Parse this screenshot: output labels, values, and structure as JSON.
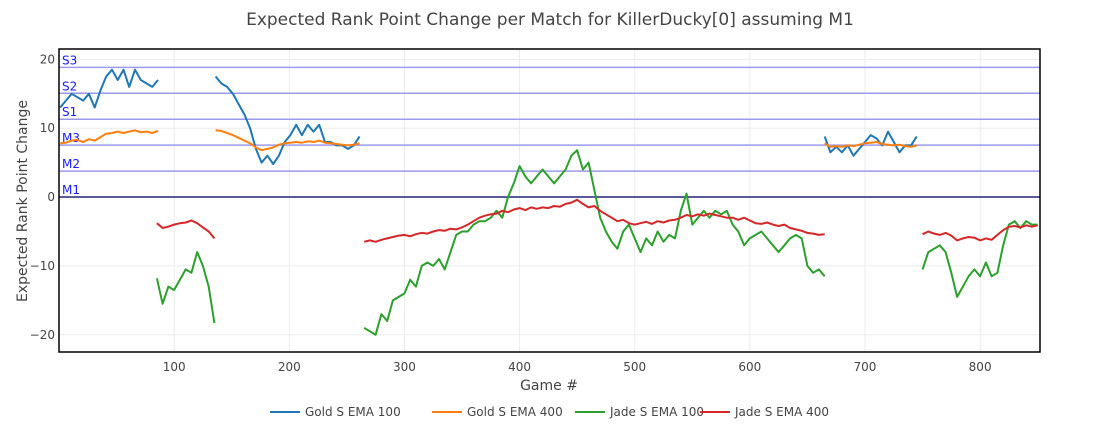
{
  "chart_data": {
    "type": "line",
    "title": "Expected Rank Point Change per Match for KillerDucky[0] assuming M1",
    "xlabel": "Game #",
    "ylabel": "Expected Rank Point Change",
    "xlim": [
      0,
      852
    ],
    "ylim": [
      -22.5,
      21.5
    ],
    "xticks": [
      100,
      200,
      300,
      400,
      500,
      600,
      700,
      800
    ],
    "yticks": [
      -20,
      -10,
      0,
      10,
      20
    ],
    "grid": true,
    "legend_position": "bottom-center",
    "reference_lines": [
      {
        "label": "S3",
        "y": 18.84,
        "color": "#9a9aee"
      },
      {
        "label": "S2",
        "y": 15.07,
        "color": "#9a9aee"
      },
      {
        "label": "S1",
        "y": 11.3,
        "color": "#9a9aee"
      },
      {
        "label": "M3",
        "y": 7.54,
        "color": "#9a9aee"
      },
      {
        "label": "M2",
        "y": 3.77,
        "color": "#9a9aee"
      },
      {
        "label": "M1",
        "y": 0,
        "color": "#5a5a9a"
      }
    ],
    "reference_label_color": "#1a1aff",
    "series": [
      {
        "name": "Gold S EMA 100",
        "color": "#1f77b4",
        "segments": [
          {
            "x0": 1,
            "step": 5,
            "y": [
              13,
              14,
              15,
              14.5,
              14,
              15,
              13,
              15.5,
              17.5,
              18.5,
              17,
              18.5,
              16,
              18.5,
              17,
              16.5,
              16,
              17
            ]
          },
          {
            "x0": 136,
            "step": 5,
            "y": [
              17.5,
              16.5,
              16,
              15,
              13.5,
              12,
              10,
              7,
              5,
              6,
              4.8,
              6,
              8,
              9,
              10.5,
              9,
              10.5,
              9.5,
              10.5,
              8,
              8,
              7.5,
              7.5,
              7,
              7.5,
              8.8
            ]
          },
          {
            "x0": 665,
            "step": 5,
            "y": [
              8.8,
              6.5,
              7.3,
              6.5,
              7.5,
              6,
              7,
              8,
              9,
              8.5,
              7.5,
              9.5,
              8,
              6.5,
              7.5,
              7.5,
              8.8
            ]
          }
        ]
      },
      {
        "name": "Gold S EMA 400",
        "color": "#ff7f0e",
        "segments": [
          {
            "x0": 1,
            "step": 5,
            "y": [
              7.8,
              7.9,
              8.2,
              8.3,
              8.0,
              8.4,
              8.2,
              8.7,
              9.2,
              9.3,
              9.5,
              9.3,
              9.5,
              9.7,
              9.4,
              9.5,
              9.3,
              9.6
            ]
          },
          {
            "x0": 136,
            "step": 5,
            "y": [
              9.7,
              9.6,
              9.3,
              9.0,
              8.6,
              8.2,
              7.8,
              7.2,
              6.8,
              7.0,
              7.2,
              7.6,
              7.8,
              7.9,
              8.0,
              7.9,
              8.1,
              8.0,
              8.2,
              7.9,
              7.8,
              7.7,
              7.6,
              7.5,
              7.6,
              7.8
            ]
          },
          {
            "x0": 665,
            "step": 5,
            "y": [
              7.8,
              7.3,
              7.4,
              7.3,
              7.5,
              7.4,
              7.6,
              7.8,
              7.9,
              8.0,
              7.7,
              7.6,
              7.5,
              7.6,
              7.4,
              7.3,
              7.5
            ]
          }
        ]
      },
      {
        "name": "Jade S EMA 100",
        "color": "#2ca02c",
        "segments": [
          {
            "x0": 85,
            "step": 5,
            "y": [
              -11.8,
              -15.5,
              -13,
              -13.5,
              -12,
              -10.5,
              -11,
              -8,
              -10,
              -13,
              -18.3
            ]
          },
          {
            "x0": 265,
            "step": 5,
            "y": [
              -19,
              -19.5,
              -20,
              -17,
              -18,
              -15,
              -14.5,
              -14,
              -12,
              -13,
              -10,
              -9.5,
              -10,
              -9,
              -10.5,
              -8,
              -5.5,
              -5,
              -5,
              -4,
              -3.5,
              -3.5,
              -3,
              -2,
              -3,
              0,
              2,
              4.5,
              3,
              2,
              3,
              4,
              3,
              2,
              3,
              4,
              6,
              6.8,
              4,
              5,
              1,
              -3,
              -5,
              -6.5,
              -7.5,
              -5,
              -4,
              -6,
              -8,
              -6,
              -7,
              -5,
              -6.5,
              -5.5,
              -6,
              -2,
              0.5,
              -4,
              -3,
              -2,
              -3,
              -2,
              -2.5,
              -2,
              -4,
              -5,
              -7,
              -6,
              -5.5,
              -5,
              -6,
              -7,
              -8,
              -7,
              -6,
              -5.5,
              -6,
              -10,
              -11,
              -10.5,
              -11.5
            ]
          },
          {
            "x0": 750,
            "step": 5,
            "y": [
              -10.5,
              -8,
              -7.5,
              -7,
              -8,
              -11,
              -14.5,
              -13,
              -11.5,
              -10.5,
              -11.5,
              -9.5,
              -11.5,
              -11,
              -7,
              -4,
              -3.5,
              -4.5,
              -3.5,
              -4,
              -4
            ]
          }
        ]
      },
      {
        "name": "Jade S EMA 400",
        "color": "#d62728",
        "segments": [
          {
            "x0": 85,
            "step": 5,
            "y": [
              -3.8,
              -4.5,
              -4.3,
              -4.0,
              -3.8,
              -3.7,
              -3.4,
              -3.8,
              -4.4,
              -5.0,
              -6.0
            ]
          },
          {
            "x0": 265,
            "step": 5,
            "y": [
              -6.5,
              -6.3,
              -6.5,
              -6.2,
              -6.0,
              -5.8,
              -5.6,
              -5.5,
              -5.7,
              -5.4,
              -5.2,
              -5.3,
              -5.0,
              -4.8,
              -4.9,
              -4.6,
              -4.7,
              -4.4,
              -4.0,
              -3.5,
              -3.0,
              -2.7,
              -2.5,
              -2.4,
              -2.0,
              -2.2,
              -1.8,
              -1.6,
              -1.9,
              -1.5,
              -1.7,
              -1.5,
              -1.6,
              -1.3,
              -1.4,
              -1.0,
              -0.8,
              -0.4,
              -1.0,
              -1.5,
              -1.3,
              -2.0,
              -2.5,
              -3.0,
              -3.5,
              -3.3,
              -3.8,
              -4.0,
              -3.8,
              -3.6,
              -3.9,
              -3.5,
              -3.7,
              -3.4,
              -3.3,
              -3.0,
              -2.6,
              -2.8,
              -2.5,
              -2.7,
              -2.4,
              -2.6,
              -2.8,
              -3.0,
              -3.0,
              -3.3,
              -3.0,
              -3.4,
              -3.8,
              -3.9,
              -3.7,
              -4.0,
              -4.2,
              -4.0,
              -4.5,
              -4.7,
              -4.9,
              -5.2,
              -5.3,
              -5.5,
              -5.4
            ]
          },
          {
            "x0": 750,
            "step": 5,
            "y": [
              -5.4,
              -5.0,
              -5.3,
              -5.5,
              -5.2,
              -5.6,
              -6.3,
              -6.0,
              -5.8,
              -5.9,
              -6.3,
              -6.0,
              -6.2,
              -5.5,
              -4.8,
              -4.3,
              -4.2,
              -4.4,
              -4.1,
              -4.3,
              -4.1
            ]
          }
        ]
      }
    ]
  }
}
